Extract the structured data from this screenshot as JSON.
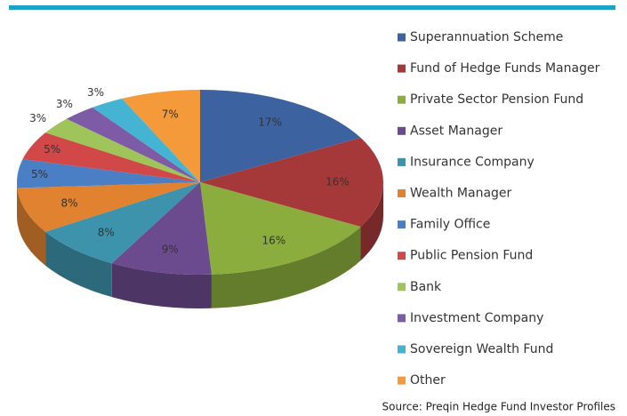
{
  "chart_data": {
    "type": "pie3d",
    "categories": [
      "Superannuation Scheme",
      "Fund of Hedge Funds Manager",
      "Private Sector Pension Fund",
      "Asset Manager",
      "Insurance Company",
      "Wealth Manager",
      "Family Office",
      "Public Pension Fund",
      "Bank",
      "Investment Company",
      "Sovereign Wealth Fund",
      "Other"
    ],
    "values": [
      17,
      16,
      16,
      9,
      8,
      8,
      5,
      5,
      3,
      3,
      3,
      7
    ],
    "value_labels": [
      "17%",
      "16%",
      "16%",
      "9%",
      "8%",
      "8%",
      "5%",
      "5%",
      "3%",
      "3%",
      "3%",
      "7%"
    ],
    "colors": [
      "#3c62a0",
      "#a5393a",
      "#8aad3e",
      "#6b4a8e",
      "#3d93ab",
      "#e0822f",
      "#4a7fc6",
      "#d04848",
      "#9fc45a",
      "#7e5ba6",
      "#45b4d3",
      "#f49a3b"
    ],
    "source": "Source: Preqin Hedge Fund Investor Profiles"
  }
}
